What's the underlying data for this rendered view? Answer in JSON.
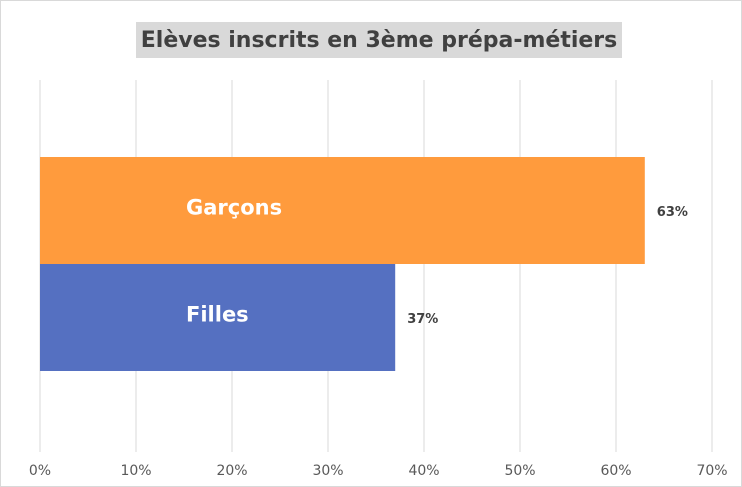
{
  "chart_data": {
    "type": "bar",
    "orientation": "horizontal",
    "title": "Elèves inscrits en 3ème prépa-métiers",
    "categories": [
      "Garçons",
      "Filles"
    ],
    "values": [
      63,
      37
    ],
    "value_labels": [
      "63%",
      "37%"
    ],
    "colors": [
      "#ff9b3d",
      "#5570c1"
    ],
    "xlim": [
      0,
      70
    ],
    "xticks": [
      {
        "value": 0,
        "label": "0%"
      },
      {
        "value": 10,
        "label": "10%"
      },
      {
        "value": 20,
        "label": "20%"
      },
      {
        "value": 30,
        "label": "30%"
      },
      {
        "value": 40,
        "label": "40%"
      },
      {
        "value": 50,
        "label": "50%"
      },
      {
        "value": 60,
        "label": "60%"
      },
      {
        "value": 70,
        "label": "70%"
      }
    ],
    "grid": true
  }
}
